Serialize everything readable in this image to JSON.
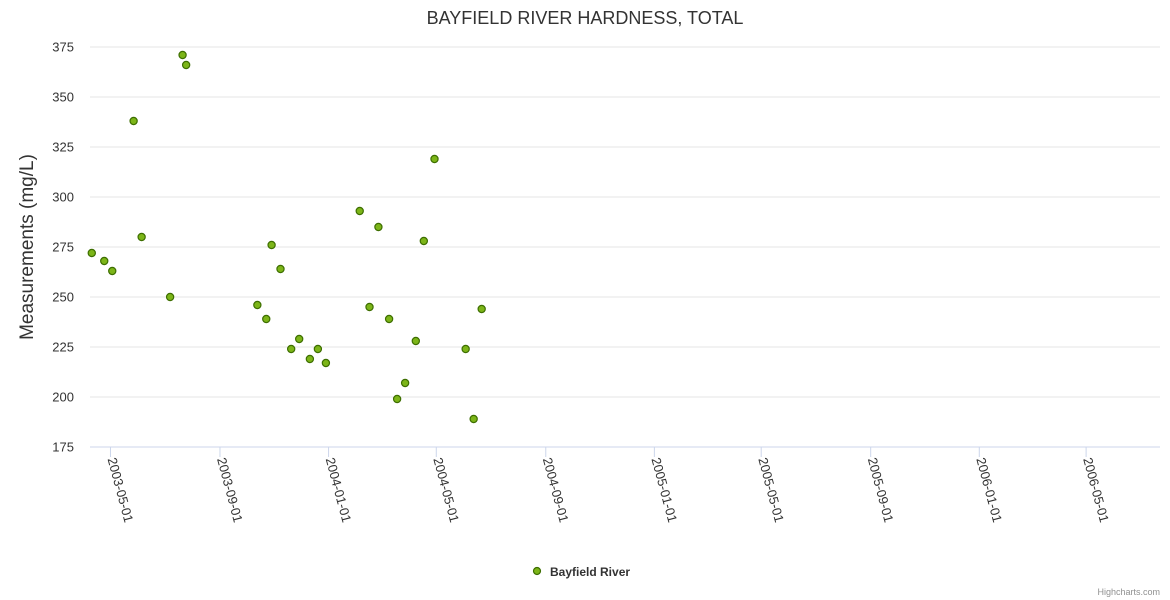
{
  "chart_data": {
    "type": "scatter",
    "title": "BAYFIELD RIVER HARDNESS, TOTAL",
    "ylabel": "Measurements (mg/L)",
    "xlabel": "",
    "ylim": [
      175,
      375
    ],
    "yticks": [
      175,
      200,
      225,
      250,
      275,
      300,
      325,
      350,
      375
    ],
    "xlim": [
      "2003-04-08",
      "2006-07-23"
    ],
    "xticks": [
      "2003-05-01",
      "2003-09-01",
      "2004-01-01",
      "2004-05-01",
      "2004-09-01",
      "2005-01-01",
      "2005-05-01",
      "2005-09-01",
      "2006-01-01",
      "2006-05-01"
    ],
    "grid": true,
    "legend": "bottom-center",
    "series": [
      {
        "name": "Bayfield River",
        "color": "#7cb518",
        "points": [
          {
            "x": "2003-04-10",
            "y": 272
          },
          {
            "x": "2003-04-24",
            "y": 268
          },
          {
            "x": "2003-05-03",
            "y": 263
          },
          {
            "x": "2003-05-27",
            "y": 338
          },
          {
            "x": "2003-06-05",
            "y": 280
          },
          {
            "x": "2003-07-07",
            "y": 250
          },
          {
            "x": "2003-07-21",
            "y": 371
          },
          {
            "x": "2003-07-25",
            "y": 366
          },
          {
            "x": "2003-10-13",
            "y": 246
          },
          {
            "x": "2003-10-23",
            "y": 239
          },
          {
            "x": "2003-10-29",
            "y": 276
          },
          {
            "x": "2003-11-08",
            "y": 264
          },
          {
            "x": "2003-11-20",
            "y": 224
          },
          {
            "x": "2003-11-29",
            "y": 229
          },
          {
            "x": "2003-12-11",
            "y": 219
          },
          {
            "x": "2003-12-20",
            "y": 224
          },
          {
            "x": "2003-12-29",
            "y": 217
          },
          {
            "x": "2004-02-05",
            "y": 293
          },
          {
            "x": "2004-02-16",
            "y": 245
          },
          {
            "x": "2004-02-26",
            "y": 285
          },
          {
            "x": "2004-03-09",
            "y": 239
          },
          {
            "x": "2004-03-18",
            "y": 199
          },
          {
            "x": "2004-03-27",
            "y": 207
          },
          {
            "x": "2004-04-08",
            "y": 228
          },
          {
            "x": "2004-04-17",
            "y": 278
          },
          {
            "x": "2004-04-29",
            "y": 319
          },
          {
            "x": "2004-06-03",
            "y": 224
          },
          {
            "x": "2004-06-12",
            "y": 189
          },
          {
            "x": "2004-06-21",
            "y": 244
          }
        ]
      }
    ]
  },
  "legend": {
    "label": "Bayfield River"
  },
  "credits": "Highcharts.com"
}
